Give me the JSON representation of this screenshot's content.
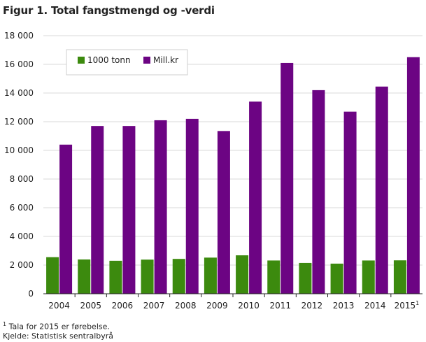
{
  "title": "Figur 1. Total fangstmengd og -verdi",
  "footnote": {
    "marker": "1",
    "text": " Tala for 2015 er førebelse.",
    "source": "Kjelde: Statistisk sentralbyrå"
  },
  "chart_data": {
    "type": "bar",
    "categories": [
      "2004",
      "2005",
      "2006",
      "2007",
      "2008",
      "2009",
      "2010",
      "2011",
      "2012",
      "2013",
      "2014",
      "2015"
    ],
    "last_category_superscript": "1",
    "series": [
      {
        "name": "1000 tonn",
        "color": "#3c8a0e",
        "values": [
          2550,
          2390,
          2300,
          2380,
          2430,
          2520,
          2680,
          2320,
          2150,
          2100,
          2320,
          2330
        ]
      },
      {
        "name": "Mill.kr",
        "color": "#6c0483",
        "values": [
          10400,
          11700,
          11700,
          12100,
          12200,
          11350,
          13400,
          16100,
          14200,
          12700,
          14450,
          16500
        ]
      }
    ],
    "ylim": [
      0,
      18000
    ],
    "yticks": [
      0,
      2000,
      4000,
      6000,
      8000,
      10000,
      12000,
      14000,
      16000,
      18000
    ],
    "ytick_labels": [
      "0",
      "2 000",
      "4 000",
      "6 000",
      "8 000",
      "10 000",
      "12 000",
      "14 000",
      "16 000",
      "18 000"
    ],
    "grid": true,
    "legend_position": "top-left"
  }
}
